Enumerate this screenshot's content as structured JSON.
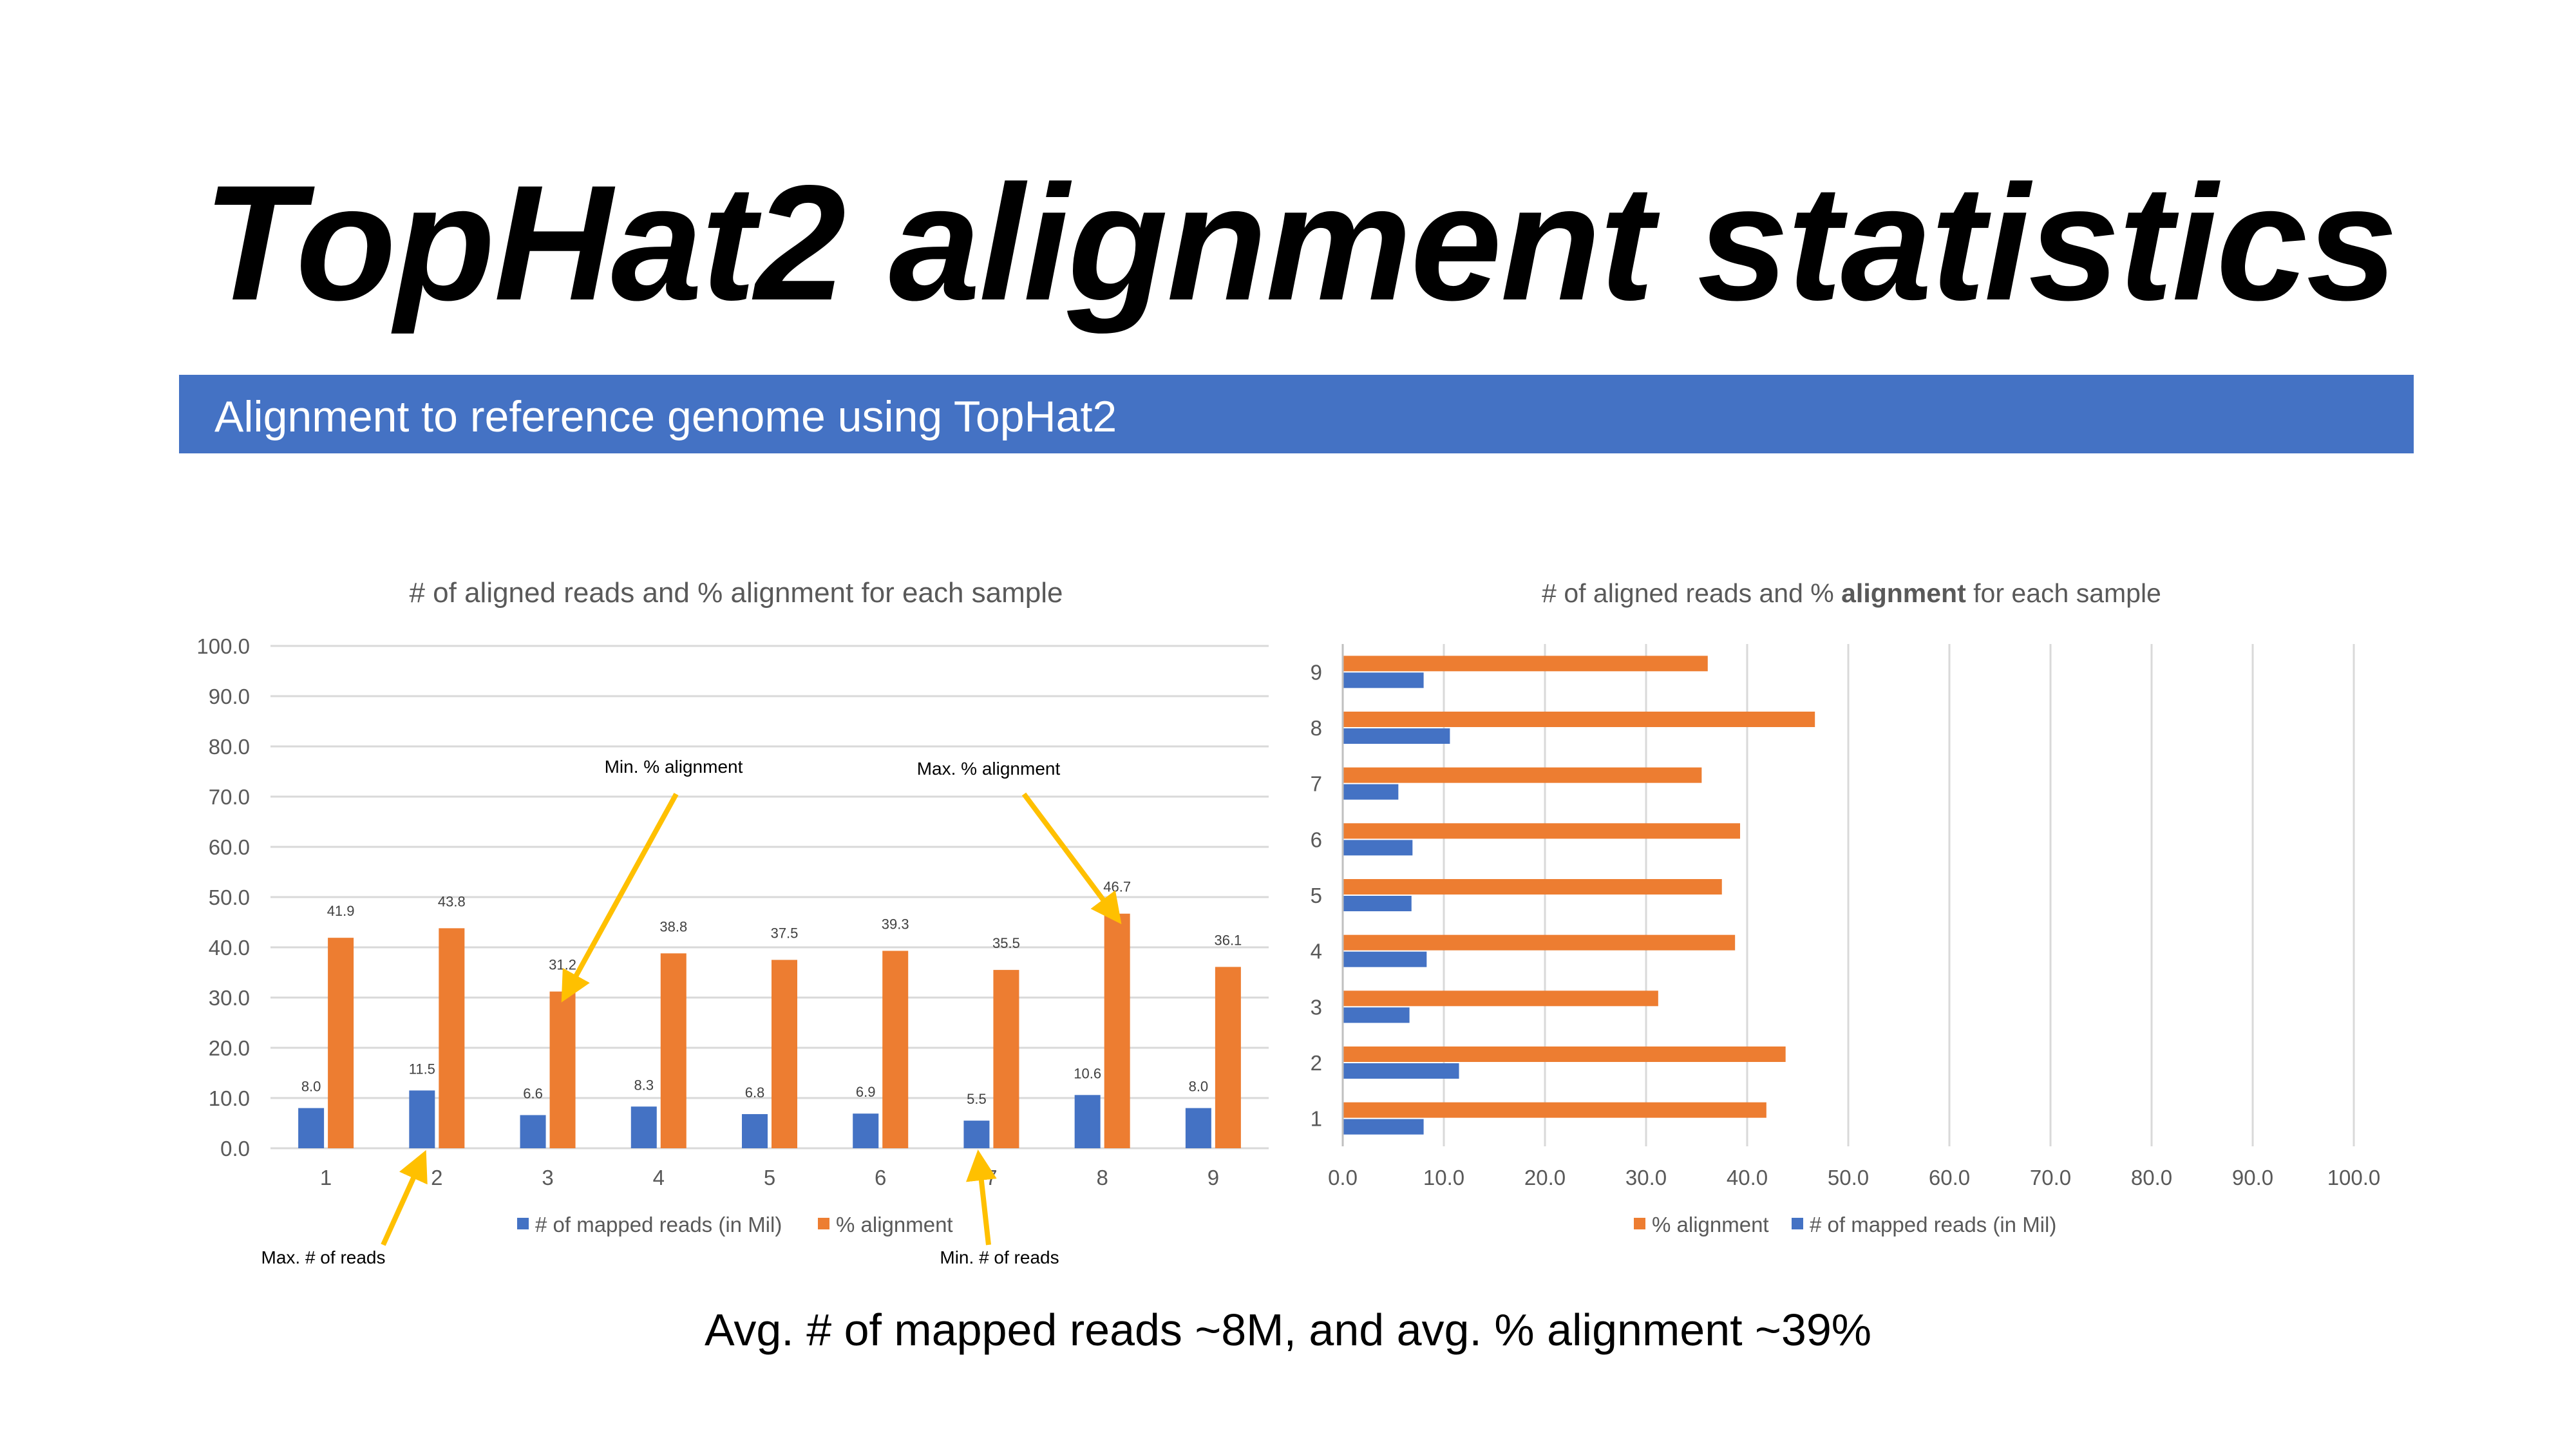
{
  "slide": {
    "title": "TopHat2 alignment statistics",
    "subtitle": "Alignment to reference genome using TopHat2",
    "footer": "Avg. # of mapped reads ~8M, and avg. % alignment ~39%"
  },
  "colors": {
    "reads": "#4472c4",
    "alignment": "#ed7d31",
    "band": "#4472c4",
    "arrow": "#ffc000"
  },
  "chart_data": [
    {
      "type": "bar",
      "orientation": "vertical",
      "title": "# of aligned reads and % alignment for each sample",
      "categories": [
        "1",
        "2",
        "3",
        "4",
        "5",
        "6",
        "7",
        "8",
        "9"
      ],
      "series": [
        {
          "name": "# of mapped reads (in Mil)",
          "values": [
            8.0,
            11.5,
            6.6,
            8.3,
            6.8,
            6.9,
            5.5,
            10.6,
            8.0
          ]
        },
        {
          "name": "% alignment",
          "values": [
            41.9,
            43.8,
            31.2,
            38.8,
            37.5,
            39.3,
            35.5,
            46.7,
            36.1
          ]
        }
      ],
      "ylim": [
        0,
        100
      ],
      "yticks": [
        "0.0",
        "10.0",
        "20.0",
        "30.0",
        "40.0",
        "50.0",
        "60.0",
        "70.0",
        "80.0",
        "90.0",
        "100.0"
      ],
      "grid": true,
      "legend": "bottom",
      "data_labels": true,
      "annotations": [
        {
          "text": "Min. % alignment",
          "category": "3",
          "series": "% alignment"
        },
        {
          "text": "Max. % alignment",
          "category": "8",
          "series": "% alignment"
        },
        {
          "text": "Max. # of reads",
          "category": "2",
          "series": "# of mapped reads (in Mil)"
        },
        {
          "text": "Min. # of reads",
          "category": "7",
          "series": "# of mapped reads (in Mil)"
        }
      ]
    },
    {
      "type": "bar",
      "orientation": "horizontal",
      "title": "# of aligned reads and % alignment for each sample",
      "title_bold_word": "alignment",
      "categories": [
        "1",
        "2",
        "3",
        "4",
        "5",
        "6",
        "7",
        "8",
        "9"
      ],
      "series": [
        {
          "name": "# of mapped reads (in Mil)",
          "values": [
            8.0,
            11.5,
            6.6,
            8.3,
            6.8,
            6.9,
            5.5,
            10.6,
            8.0
          ]
        },
        {
          "name": "% alignment",
          "values": [
            41.9,
            43.8,
            31.2,
            38.8,
            37.5,
            39.3,
            35.5,
            46.7,
            36.1
          ]
        }
      ],
      "xlim": [
        0,
        100
      ],
      "xticks": [
        "0.0",
        "10.0",
        "20.0",
        "30.0",
        "40.0",
        "50.0",
        "60.0",
        "70.0",
        "80.0",
        "90.0",
        "100.0"
      ],
      "grid": true,
      "legend": "bottom",
      "legend_order": [
        "% alignment",
        "# of mapped reads (in Mil)"
      ]
    }
  ]
}
